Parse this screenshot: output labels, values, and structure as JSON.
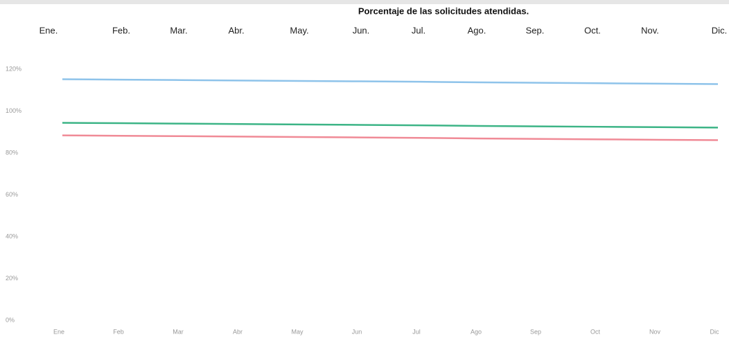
{
  "chart_data": {
    "type": "line",
    "title": "Porcentaje de las solicitudes atendidas.",
    "top_categories": [
      "Ene.",
      "Feb.",
      "Mar.",
      "Abr.",
      "May.",
      "Jun.",
      "Jul.",
      "Ago.",
      "Sep.",
      "Oct.",
      "Nov.",
      "Dic."
    ],
    "categories": [
      "Ene",
      "Feb",
      "Mar",
      "Abr",
      "May",
      "Jun",
      "Jul",
      "Ago",
      "Sep",
      "Oct",
      "Nov",
      "Dic"
    ],
    "series": [
      {
        "color": "#8ec3ea",
        "values": [
          115.2,
          115.0,
          114.8,
          114.6,
          114.4,
          114.2,
          114.0,
          113.7,
          113.5,
          113.3,
          113.1,
          112.9
        ]
      },
      {
        "color": "#3cb486",
        "values": [
          94.4,
          94.2,
          94.0,
          93.8,
          93.6,
          93.4,
          93.2,
          92.9,
          92.7,
          92.5,
          92.3,
          92.1
        ]
      },
      {
        "color": "#f08a96",
        "values": [
          88.4,
          88.2,
          88.0,
          87.8,
          87.6,
          87.4,
          87.2,
          86.9,
          86.7,
          86.5,
          86.3,
          86.1
        ]
      }
    ],
    "ylim": [
      0,
      120
    ],
    "yticks": [
      {
        "value": 0,
        "label": "0%"
      },
      {
        "value": 20,
        "label": "20%"
      },
      {
        "value": 40,
        "label": "40%"
      },
      {
        "value": 60,
        "label": "60%"
      },
      {
        "value": 80,
        "label": "80%"
      },
      {
        "value": 100,
        "label": "100%"
      },
      {
        "value": 120,
        "label": "120%"
      }
    ],
    "grid": false
  }
}
